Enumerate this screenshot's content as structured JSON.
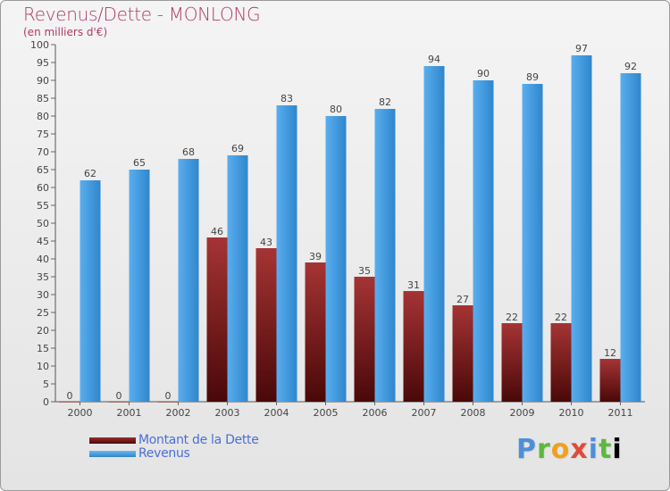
{
  "chart_data": {
    "type": "bar",
    "title": "Revenus/Dette - MONLONG",
    "subtitle": "(en milliers d'€)",
    "categories": [
      "2000",
      "2001",
      "2002",
      "2003",
      "2004",
      "2005",
      "2006",
      "2007",
      "2008",
      "2009",
      "2010",
      "2011"
    ],
    "series": [
      {
        "name": "Montant de la Dette",
        "values": [
          0,
          0,
          0,
          46,
          43,
          39,
          35,
          31,
          27,
          22,
          22,
          12
        ],
        "color": "#7a1a1a"
      },
      {
        "name": "Revenus",
        "values": [
          62,
          65,
          68,
          69,
          83,
          80,
          82,
          94,
          90,
          89,
          97,
          92
        ],
        "color": "#4a9fe0"
      }
    ],
    "ylim": [
      0,
      100
    ],
    "ytick_step": 5,
    "grid": false,
    "legend": "bottom-left"
  },
  "branding": {
    "logo_letters": [
      "P",
      "r",
      "o",
      "x",
      "i",
      "t",
      "i"
    ]
  }
}
